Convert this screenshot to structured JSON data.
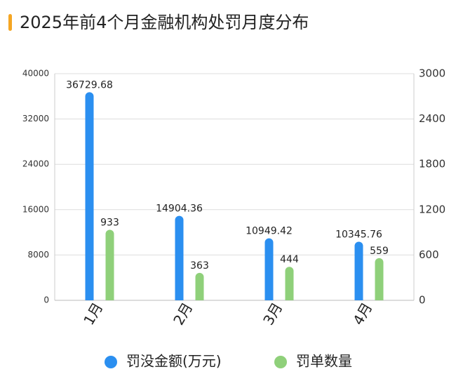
{
  "chart_data": {
    "type": "bar",
    "title": "2025年前4个月金融机构处罚月度分布",
    "categories": [
      "1月",
      "2月",
      "3月",
      "4月"
    ],
    "series": [
      {
        "name": "罚没金额(万元)",
        "color": "#2b8ff0",
        "values": [
          36729.68,
          14904.36,
          10949.42,
          10345.76
        ]
      },
      {
        "name": "罚单数量",
        "color": "#8fd07a",
        "axis": "y2",
        "values": [
          933,
          363,
          444,
          559
        ]
      }
    ],
    "ylim": [
      0,
      40000
    ],
    "yticks": [
      0,
      8000,
      16000,
      24000,
      32000,
      40000
    ],
    "y2lim": [
      0,
      3000
    ],
    "y2ticks": [
      0,
      600,
      1200,
      1800,
      2400,
      3000
    ],
    "grid": true
  }
}
